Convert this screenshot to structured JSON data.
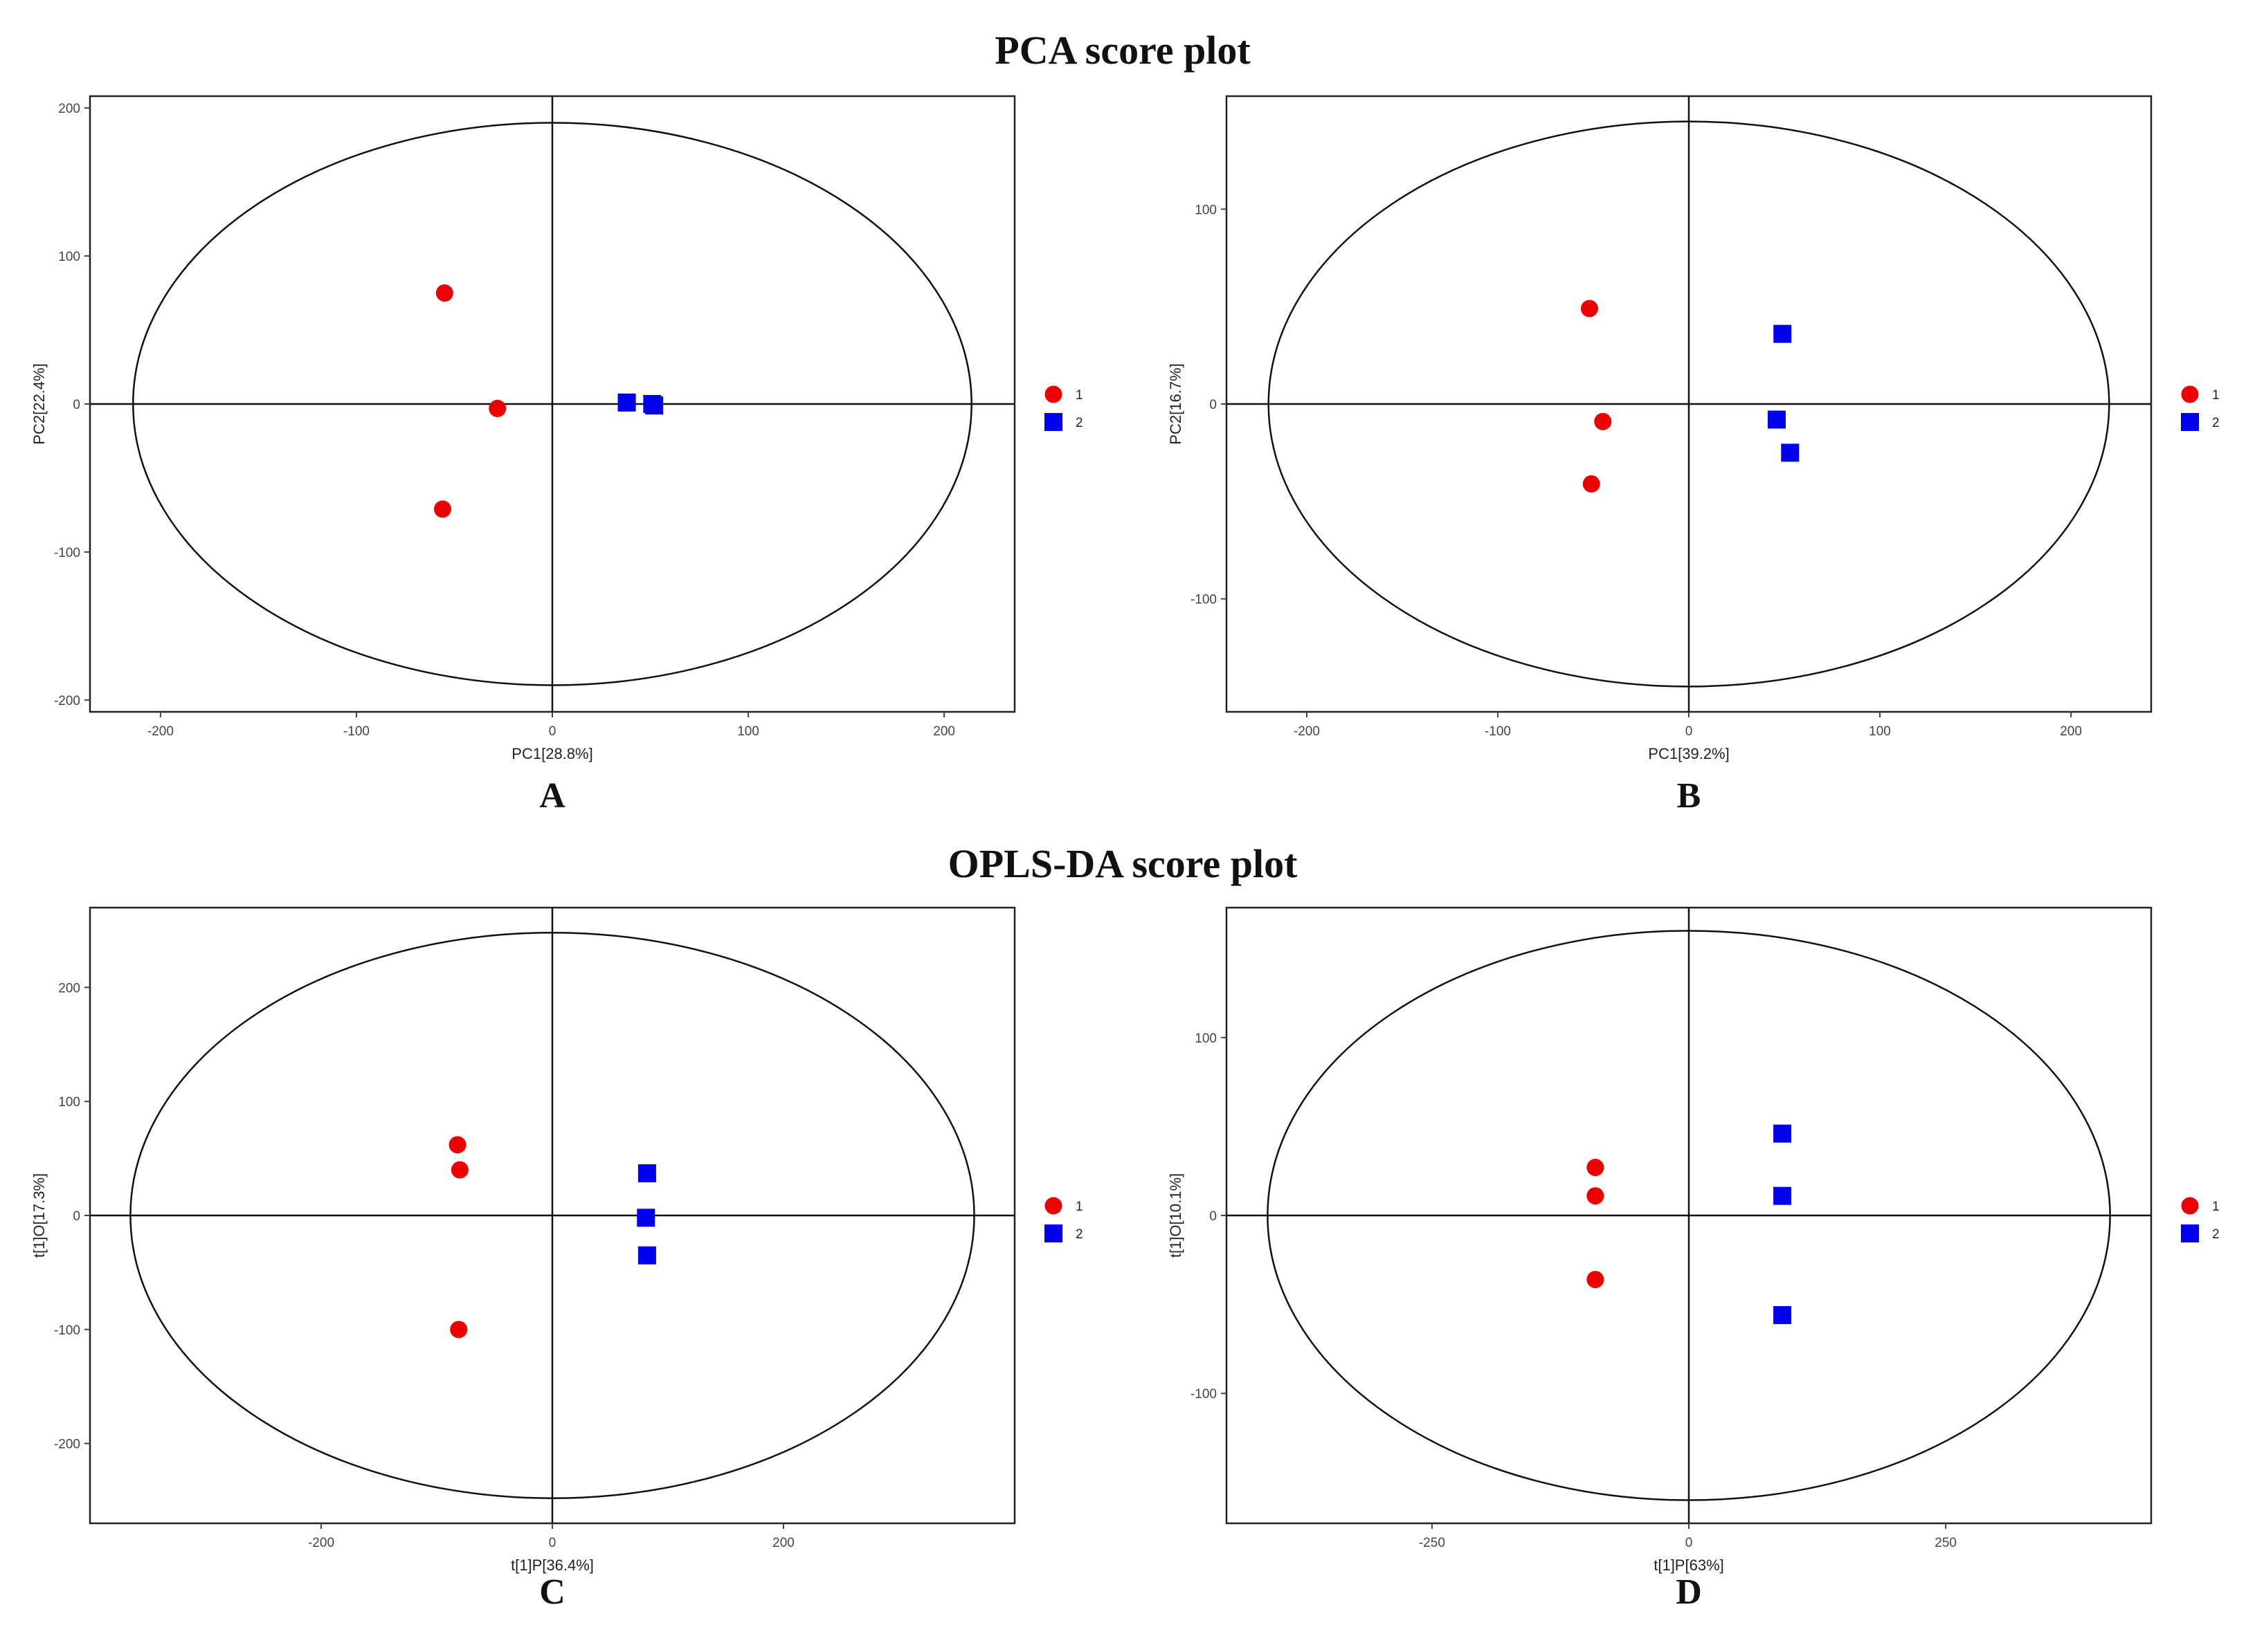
{
  "sections": {
    "pca_title": "PCA score plot",
    "oplsda_title": "OPLS-DA score plot"
  },
  "colors": {
    "group1": "#ee0000",
    "group2": "#0000ee"
  },
  "chart_data": [
    {
      "panel": "A",
      "type": "scatter",
      "xlabel": "PC1[28.8%]",
      "ylabel": "PC2[22.4%]",
      "xlim": [
        -236,
        236
      ],
      "ylim": [
        -208,
        208
      ],
      "xticks": [
        -200,
        -100,
        0,
        100,
        200
      ],
      "xtick_labels": [
        "-200",
        "-100",
        "0",
        "100",
        "200"
      ],
      "yticks": [
        -200,
        -100,
        0,
        100,
        200
      ],
      "ytick_labels": [
        "-200",
        "-100",
        "0",
        "100",
        "200"
      ],
      "ellipse": {
        "rx": 214,
        "ry": 190
      },
      "legend": [
        "1",
        "2"
      ],
      "series": [
        {
          "name": "1",
          "marker": "circle",
          "points": [
            [
              -55,
              75
            ],
            [
              -28,
              -3
            ],
            [
              -56,
              -71
            ]
          ]
        },
        {
          "name": "2",
          "marker": "square",
          "points": [
            [
              38,
              1
            ],
            [
              51,
              0
            ],
            [
              52,
              -1
            ]
          ]
        }
      ]
    },
    {
      "panel": "B",
      "type": "scatter",
      "xlabel": "PC1[39.2%]",
      "ylabel": "PC2[16.7%]",
      "xlim": [
        -242,
        242
      ],
      "ylim": [
        -158,
        158
      ],
      "xticks": [
        -200,
        -100,
        0,
        100,
        200
      ],
      "xtick_labels": [
        "-200",
        "-100",
        "0",
        "100",
        "200"
      ],
      "yticks": [
        -100,
        0,
        100
      ],
      "ytick_labels": [
        "-100",
        "0",
        "100"
      ],
      "ellipse": {
        "rx": 220,
        "ry": 145
      },
      "legend": [
        "1",
        "2"
      ],
      "series": [
        {
          "name": "1",
          "marker": "circle",
          "points": [
            [
              -52,
              49
            ],
            [
              -45,
              -9
            ],
            [
              -51,
              -41
            ]
          ]
        },
        {
          "name": "2",
          "marker": "square",
          "points": [
            [
              49,
              36
            ],
            [
              46,
              -8
            ],
            [
              53,
              -25
            ]
          ]
        }
      ]
    },
    {
      "panel": "C",
      "type": "scatter",
      "xlabel": "t[1]P[36.4%]",
      "ylabel": "t[1]O[17.3%]",
      "xlim": [
        -400,
        400
      ],
      "ylim": [
        -270,
        270
      ],
      "xticks": [
        -200,
        0,
        200
      ],
      "xtick_labels": [
        "-200",
        "0",
        "200"
      ],
      "yticks": [
        -200,
        -100,
        0,
        100,
        200
      ],
      "ytick_labels": [
        "-200",
        "-100",
        "0",
        "100",
        "200"
      ],
      "ellipse": {
        "rx": 365,
        "ry": 248
      },
      "legend": [
        "1",
        "2"
      ],
      "series": [
        {
          "name": "1",
          "marker": "circle",
          "points": [
            [
              -82,
              62
            ],
            [
              -80,
              40
            ],
            [
              -81,
              -100
            ]
          ]
        },
        {
          "name": "2",
          "marker": "square",
          "points": [
            [
              82,
              37
            ],
            [
              81,
              -2
            ],
            [
              82,
              -35
            ]
          ]
        }
      ]
    },
    {
      "panel": "D",
      "type": "scatter",
      "xlabel": "t[1]P[63%]",
      "ylabel": "t[1]O[10.1%]",
      "xlim": [
        -450,
        450
      ],
      "ylim": [
        -173,
        173
      ],
      "xticks": [
        -250,
        0,
        250
      ],
      "xtick_labels": [
        "-250",
        "0",
        "250"
      ],
      "yticks": [
        -100,
        0,
        100
      ],
      "ytick_labels": [
        "-100",
        "0",
        "100"
      ],
      "ellipse": {
        "rx": 410,
        "ry": 160
      },
      "legend": [
        "1",
        "2"
      ],
      "series": [
        {
          "name": "1",
          "marker": "circle",
          "points": [
            [
              -91,
              27
            ],
            [
              -91,
              11
            ],
            [
              -91,
              -36
            ]
          ]
        },
        {
          "name": "2",
          "marker": "square",
          "points": [
            [
              91,
              46
            ],
            [
              91,
              11
            ],
            [
              91,
              -56
            ]
          ]
        }
      ]
    }
  ]
}
